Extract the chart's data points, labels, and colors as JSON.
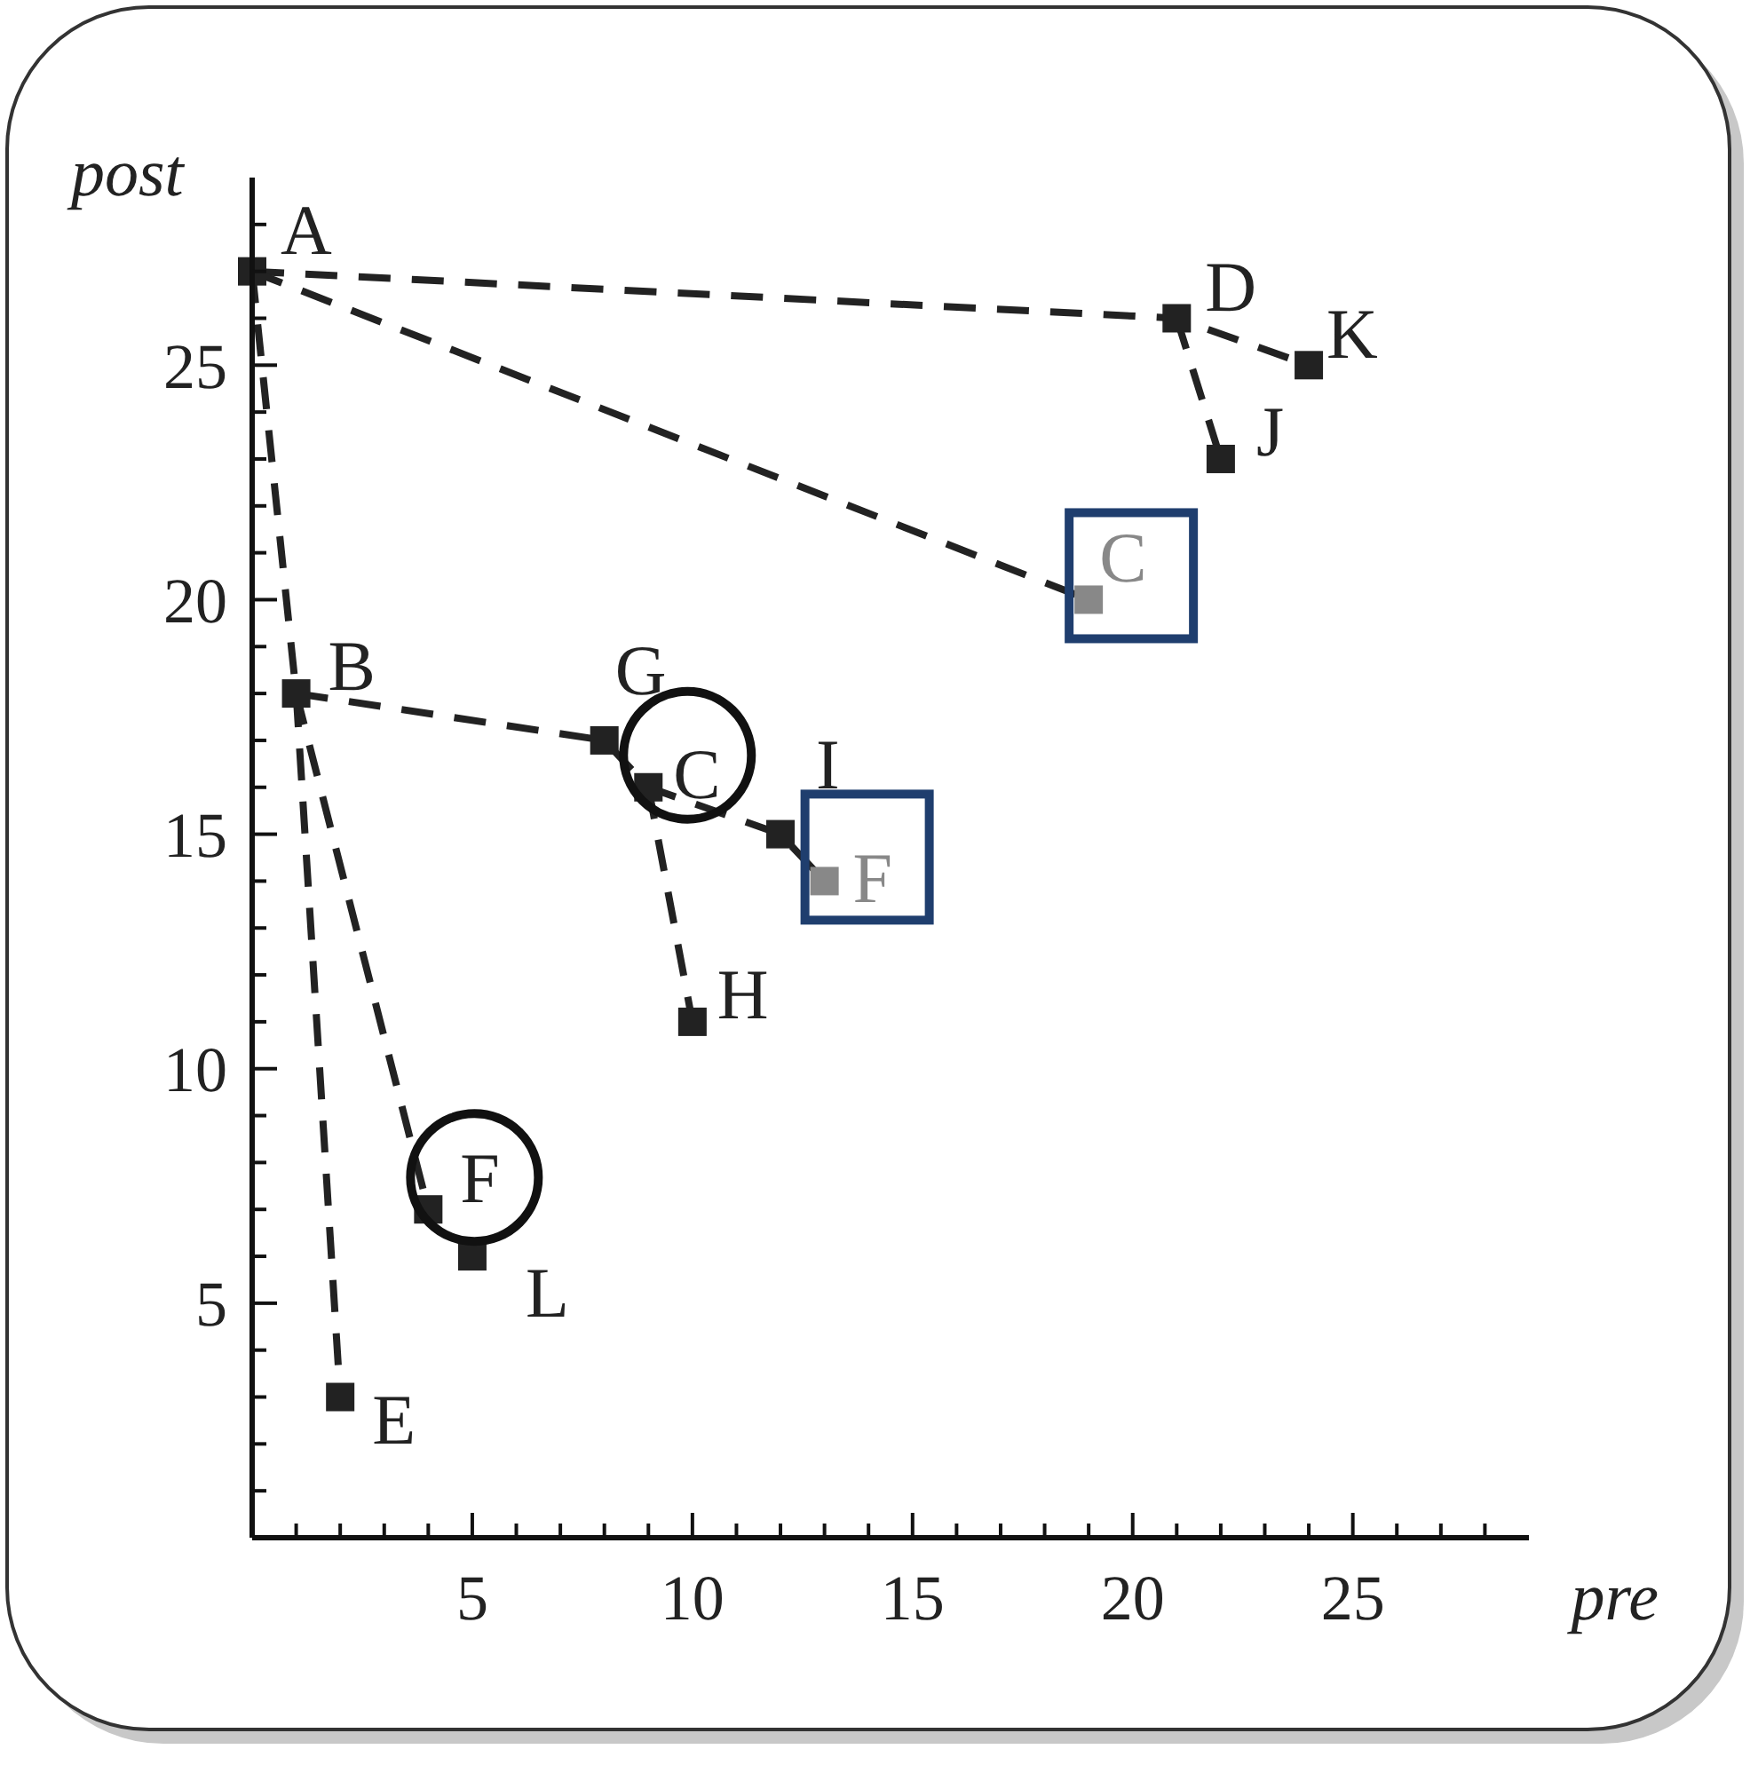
{
  "chart_data": {
    "type": "scatter",
    "xlabel": "pre",
    "ylabel": "post",
    "xlim": [
      0,
      29
    ],
    "ylim": [
      0,
      29
    ],
    "xticks": [
      {
        "value": 1,
        "label": null
      },
      {
        "value": 2,
        "label": null
      },
      {
        "value": 3,
        "label": null
      },
      {
        "value": 4,
        "label": null
      },
      5,
      {
        "value": 6,
        "label": null
      },
      {
        "value": 7,
        "label": null
      },
      {
        "value": 8,
        "label": null
      },
      {
        "value": 9,
        "label": null
      },
      10,
      {
        "value": 11,
        "label": null
      },
      {
        "value": 12,
        "label": null
      },
      {
        "value": 13,
        "label": null
      },
      {
        "value": 14,
        "label": null
      },
      15,
      {
        "value": 16,
        "label": null
      },
      {
        "value": 17,
        "label": null
      },
      {
        "value": 18,
        "label": null
      },
      {
        "value": 19,
        "label": null
      },
      20,
      {
        "value": 21,
        "label": null
      },
      {
        "value": 22,
        "label": null
      },
      {
        "value": 23,
        "label": null
      },
      {
        "value": 24,
        "label": null
      },
      25,
      {
        "value": 26,
        "label": null
      },
      {
        "value": 27,
        "label": null
      },
      {
        "value": 28,
        "label": null
      }
    ],
    "yticks": [
      {
        "value": 1,
        "label": null
      },
      {
        "value": 2,
        "label": null
      },
      {
        "value": 3,
        "label": null
      },
      {
        "value": 4,
        "label": null
      },
      5,
      {
        "value": 6,
        "label": null
      },
      {
        "value": 7,
        "label": null
      },
      {
        "value": 8,
        "label": null
      },
      {
        "value": 9,
        "label": null
      },
      10,
      {
        "value": 11,
        "label": null
      },
      {
        "value": 12,
        "label": null
      },
      {
        "value": 13,
        "label": null
      },
      {
        "value": 14,
        "label": null
      },
      15,
      {
        "value": 16,
        "label": null
      },
      {
        "value": 17,
        "label": null
      },
      {
        "value": 18,
        "label": null
      },
      {
        "value": 19,
        "label": null
      },
      20,
      {
        "value": 21,
        "label": null
      },
      {
        "value": 22,
        "label": null
      },
      {
        "value": 23,
        "label": null
      },
      {
        "value": 24,
        "label": null
      },
      25,
      {
        "value": 26,
        "label": null
      },
      {
        "value": 27,
        "label": null
      },
      {
        "value": 28,
        "label": null
      }
    ],
    "marker": "square",
    "series": [
      {
        "type": "line",
        "line_style": "dashed",
        "marker": "none",
        "color": "#222222",
        "x": [
          0,
          1,
          2
        ],
        "values": [
          27,
          18,
          3
        ]
      },
      {
        "type": "line",
        "line_style": "dashed",
        "marker": "none",
        "color": "#222222",
        "x": [
          1,
          4
        ],
        "values": [
          18,
          7
        ]
      },
      {
        "type": "line",
        "line_style": "dashed",
        "marker": "none",
        "color": "#222222",
        "x": [
          1,
          8,
          9,
          12,
          13
        ],
        "values": [
          18,
          17,
          16,
          15,
          14
        ]
      },
      {
        "type": "line",
        "line_style": "dashed",
        "marker": "none",
        "color": "#222222",
        "x": [
          9,
          10
        ],
        "values": [
          16,
          11
        ]
      },
      {
        "type": "line",
        "line_style": "dashed",
        "marker": "none",
        "color": "#222222",
        "x": [
          0,
          21,
          24
        ],
        "values": [
          27,
          26,
          25
        ]
      },
      {
        "type": "line",
        "line_style": "dashed",
        "marker": "none",
        "color": "#222222",
        "x": [
          21,
          22
        ],
        "values": [
          26,
          23
        ]
      },
      {
        "type": "line",
        "line_style": "dashed",
        "marker": "none",
        "color": "#222222",
        "x": [
          0,
          19
        ],
        "values": [
          27,
          20
        ]
      },
      {
        "color": "#222222",
        "x": [
          0,
          1,
          2,
          4,
          5,
          8,
          9,
          10,
          12,
          21,
          22,
          24
        ],
        "values": [
          27,
          18,
          3,
          7,
          6,
          17,
          16,
          11,
          15,
          26,
          23,
          25
        ]
      },
      {
        "color": "#888888",
        "x": [
          13,
          19
        ],
        "values": [
          14,
          20
        ]
      }
    ],
    "annotations": [
      {
        "text": "A",
        "x": 0,
        "y": 27
      },
      {
        "text": "B",
        "x": 1,
        "y": 18
      },
      {
        "text": "E",
        "x": 2,
        "y": 3
      },
      {
        "text": "F",
        "x": 4,
        "y": 7
      },
      {
        "text": "L",
        "x": 5,
        "y": 6
      },
      {
        "text": "G",
        "x": 8,
        "y": 17
      },
      {
        "text": "C",
        "x": 9,
        "y": 16
      },
      {
        "text": "H",
        "x": 10,
        "y": 11
      },
      {
        "text": "I",
        "x": 12,
        "y": 15
      },
      {
        "text": "F",
        "x": 13,
        "y": 14
      },
      {
        "text": "C",
        "x": 19,
        "y": 20
      },
      {
        "text": "D",
        "x": 21,
        "y": 26
      },
      {
        "text": "J",
        "x": 22,
        "y": 23
      },
      {
        "text": "K",
        "x": 24,
        "y": 25
      }
    ]
  }
}
